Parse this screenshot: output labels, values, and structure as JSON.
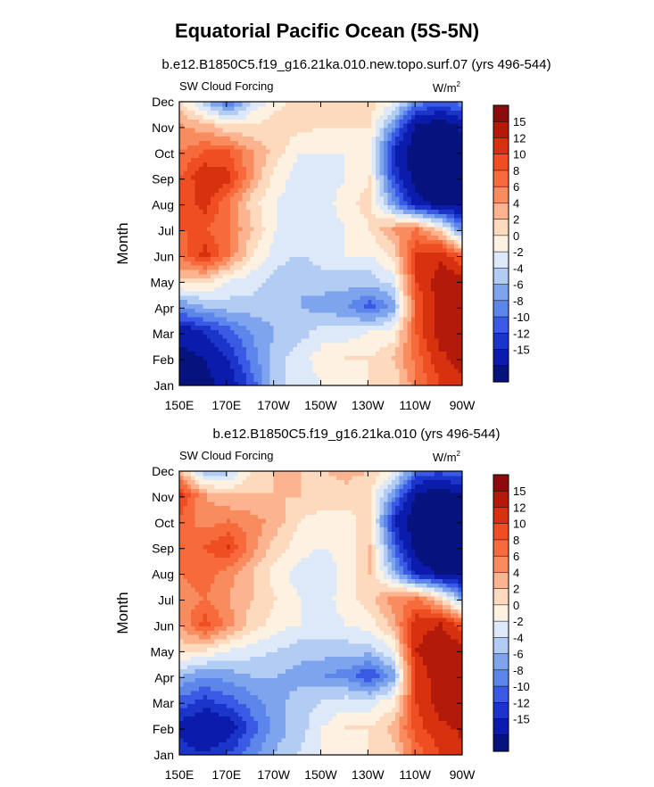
{
  "figure": {
    "title": "Equatorial Pacific Ocean (5S-5N)"
  },
  "colorbar": {
    "labels": [
      "15",
      "12",
      "10",
      "8",
      "6",
      "4",
      "2",
      "0",
      "-2",
      "-4",
      "-6",
      "-8",
      "-10",
      "-12",
      "-15"
    ],
    "colors": [
      "#8a0c0c",
      "#b41a0a",
      "#d8310f",
      "#ef4d22",
      "#f76a3c",
      "#f98c5f",
      "#fcb38f",
      "#fdd9bd",
      "#fdf1e2",
      "#dde9f8",
      "#b3ccf3",
      "#7ea4ee",
      "#5c86ea",
      "#3a5ae6",
      "#1b34c9",
      "#0b1cad",
      "#06127e"
    ]
  },
  "chart_data": [
    {
      "type": "heatmap",
      "title": "b.e12.B1850C5.f19_g16.21ka.010.new.topo.surf.07 (yrs 496-544)",
      "left_string": "SW Cloud Forcing",
      "units_base": "W/m",
      "units_exp": "2",
      "xlabel": "",
      "ylabel": "Month",
      "x_ticks": [
        "150E",
        "170E",
        "170W",
        "150W",
        "130W",
        "110W",
        "90W"
      ],
      "y_ticks": [
        "Jan",
        "Feb",
        "Mar",
        "Apr",
        "May",
        "Jun",
        "Jul",
        "Aug",
        "Sep",
        "Oct",
        "Nov",
        "Dec"
      ],
      "levels": [
        -15,
        -12,
        -10,
        -8,
        -6,
        -4,
        -2,
        0,
        2,
        4,
        6,
        8,
        10,
        12,
        15
      ],
      "columns_lon": [
        "150E",
        "160E",
        "170E",
        "180",
        "170W",
        "160W",
        "150W",
        "140W",
        "130W",
        "120W",
        "110W",
        "100W",
        "90W"
      ],
      "values": [
        [
          -16,
          -16,
          -14,
          -9,
          -3,
          -1,
          0,
          1,
          2,
          2,
          8,
          12,
          14
        ],
        [
          -16,
          -15,
          -12,
          -7,
          -3,
          -1,
          1,
          2,
          2,
          4,
          9,
          14,
          17
        ],
        [
          -14,
          -12,
          -9,
          -6,
          -4,
          -3,
          -1,
          -1,
          0,
          1,
          10,
          17,
          18
        ],
        [
          -6,
          -4,
          -3,
          -3,
          -3,
          -4,
          -5,
          -6,
          -9,
          -5,
          10,
          17,
          18
        ],
        [
          3,
          3,
          0,
          -1,
          -3,
          -4,
          -3,
          -3,
          -3,
          -1,
          12,
          17,
          17
        ],
        [
          9,
          13,
          8,
          2,
          -1,
          -2,
          -1,
          0,
          0,
          3,
          12,
          14,
          8
        ],
        [
          10,
          10,
          8,
          4,
          0,
          -1,
          -1,
          0,
          2,
          6,
          8,
          2,
          -8
        ],
        [
          10,
          13,
          8,
          3,
          0,
          -1,
          -1,
          1,
          3,
          -6,
          -14,
          -16,
          -16
        ],
        [
          10,
          14,
          13,
          6,
          1,
          -1,
          -1,
          0,
          2,
          -10,
          -17,
          -18,
          -18
        ],
        [
          8,
          10,
          10,
          6,
          3,
          0,
          0,
          0,
          1,
          -12,
          -18,
          -18,
          -16
        ],
        [
          6,
          5,
          2,
          2,
          3,
          3,
          2,
          2,
          2,
          -6,
          -16,
          -17,
          -14
        ],
        [
          2,
          -4,
          -9,
          -2,
          1,
          3,
          3,
          4,
          3,
          1,
          -6,
          -8,
          -6
        ]
      ]
    },
    {
      "type": "heatmap",
      "title": "b.e12.B1850C5.f19_g16.21ka.010 (yrs 496-544)",
      "left_string": "SW Cloud Forcing",
      "units_base": "W/m",
      "units_exp": "2",
      "xlabel": "",
      "ylabel": "Month",
      "x_ticks": [
        "150E",
        "170E",
        "170W",
        "150W",
        "130W",
        "110W",
        "90W"
      ],
      "y_ticks": [
        "Jan",
        "Feb",
        "Mar",
        "Apr",
        "May",
        "Jun",
        "Jul",
        "Aug",
        "Sep",
        "Oct",
        "Nov",
        "Dec"
      ],
      "levels": [
        -15,
        -12,
        -10,
        -8,
        -6,
        -4,
        -2,
        0,
        2,
        4,
        6,
        8,
        10,
        12,
        15
      ],
      "columns_lon": [
        "150E",
        "160E",
        "170E",
        "180",
        "170W",
        "160W",
        "150W",
        "140W",
        "130W",
        "120W",
        "110W",
        "100W",
        "90W"
      ],
      "values": [
        [
          -11,
          -12,
          -10,
          -7,
          -4,
          -2,
          0,
          1,
          2,
          3,
          9,
          12,
          14
        ],
        [
          -13,
          -15,
          -14,
          -9,
          -5,
          -3,
          0,
          2,
          2,
          5,
          11,
          14,
          16
        ],
        [
          -9,
          -11,
          -9,
          -7,
          -5,
          -3,
          -2,
          -1,
          -1,
          1,
          12,
          17,
          18
        ],
        [
          -4,
          -6,
          -5,
          -4,
          -4,
          -5,
          -6,
          -7,
          -10,
          -5,
          13,
          17,
          18
        ],
        [
          3,
          2,
          0,
          -1,
          -2,
          -3,
          -3,
          -3,
          -3,
          0,
          15,
          17,
          17
        ],
        [
          6,
          11,
          7,
          3,
          1,
          0,
          -1,
          0,
          1,
          5,
          14,
          15,
          10
        ],
        [
          7,
          8,
          6,
          4,
          2,
          0,
          -1,
          1,
          3,
          7,
          8,
          3,
          -6
        ],
        [
          8,
          9,
          7,
          4,
          1,
          -1,
          -2,
          1,
          4,
          -4,
          -13,
          -16,
          -16
        ],
        [
          8,
          10,
          12,
          7,
          3,
          1,
          0,
          1,
          4,
          -8,
          -17,
          -18,
          -18
        ],
        [
          9,
          7,
          8,
          7,
          5,
          2,
          1,
          1,
          3,
          -12,
          -18,
          -18,
          -16
        ],
        [
          12,
          6,
          4,
          4,
          4,
          4,
          3,
          3,
          2,
          -6,
          -16,
          -17,
          -15
        ],
        [
          4,
          -5,
          -3,
          2,
          4,
          4,
          4,
          5,
          4,
          1,
          -7,
          -9,
          -7
        ]
      ]
    }
  ]
}
